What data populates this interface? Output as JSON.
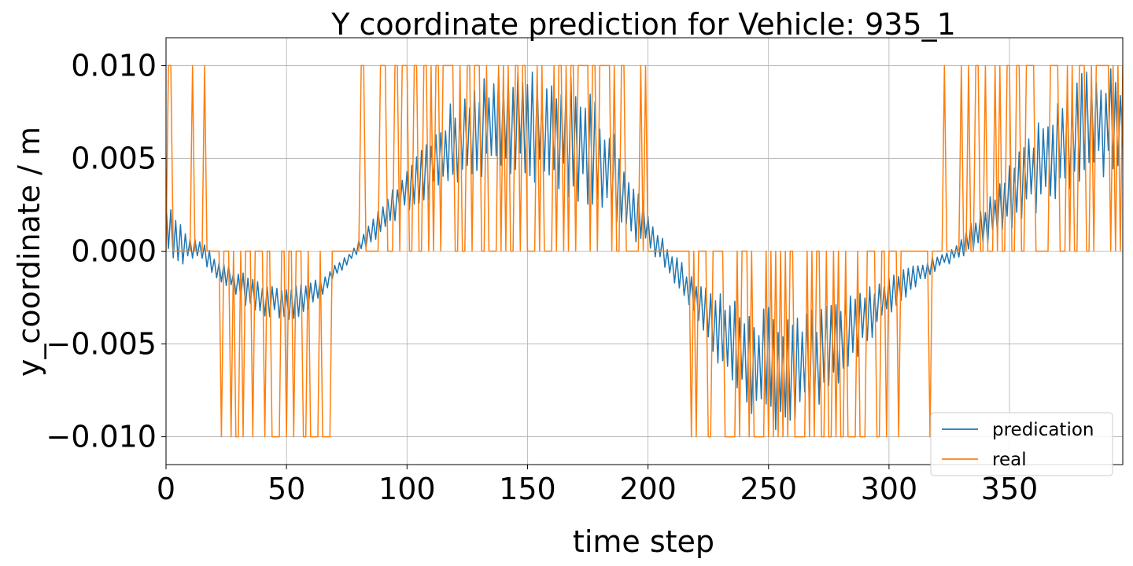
{
  "colors": {
    "prediction": "#1f77b4",
    "real": "#ff7f0e"
  },
  "chart_data": {
    "type": "line",
    "title": "Y coordinate prediction for Vehicle: 935_1",
    "xlabel": "time step",
    "ylabel": "y_coordinate / m",
    "xlim": [
      0,
      397
    ],
    "ylim": [
      -0.0115,
      0.0115
    ],
    "xticks": [
      0,
      50,
      100,
      150,
      200,
      250,
      300,
      350
    ],
    "xtick_labels": [
      "0",
      "50",
      "100",
      "150",
      "200",
      "250",
      "300",
      "350"
    ],
    "yticks": [
      -0.01,
      -0.005,
      0,
      0.005,
      0.01
    ],
    "ytick_labels": [
      "−0.010",
      "−0.005",
      "0.000",
      "0.005",
      "0.010"
    ],
    "grid": true,
    "legend_position": "lower-right",
    "series": [
      {
        "name": "predication",
        "style": "envelope",
        "x": [
          0,
          5,
          10,
          15,
          20,
          25,
          30,
          35,
          40,
          45,
          50,
          55,
          60,
          65,
          70,
          75,
          80,
          85,
          90,
          95,
          100,
          105,
          110,
          115,
          120,
          125,
          130,
          135,
          140,
          145,
          150,
          155,
          160,
          165,
          170,
          175,
          180,
          185,
          190,
          195,
          200,
          205,
          210,
          215,
          220,
          225,
          230,
          235,
          240,
          245,
          250,
          255,
          260,
          265,
          270,
          275,
          280,
          285,
          290,
          295,
          300,
          305,
          310,
          315,
          320,
          325,
          330,
          335,
          340,
          345,
          350,
          355,
          360,
          365,
          370,
          375,
          380,
          385,
          390,
          397
        ],
        "values": [
          0.0015,
          0.0005,
          0.0002,
          0.0,
          -0.0008,
          -0.0012,
          -0.0018,
          -0.0022,
          -0.0025,
          -0.0027,
          -0.0028,
          -0.0027,
          -0.0024,
          -0.0018,
          -0.0011,
          -0.0005,
          0.0003,
          0.001,
          0.0017,
          0.0025,
          0.0033,
          0.004,
          0.0047,
          0.0053,
          0.0058,
          0.0062,
          0.0065,
          0.0067,
          0.0068,
          0.0068,
          0.0067,
          0.0066,
          0.0065,
          0.0063,
          0.006,
          0.0056,
          0.005,
          0.0042,
          0.0032,
          0.0021,
          0.001,
          0.0001,
          -0.0008,
          -0.0017,
          -0.0026,
          -0.0035,
          -0.0043,
          -0.005,
          -0.0056,
          -0.006,
          -0.0063,
          -0.0064,
          -0.0064,
          -0.0062,
          -0.0059,
          -0.0054,
          -0.0048,
          -0.0042,
          -0.0036,
          -0.003,
          -0.0024,
          -0.0019,
          -0.0014,
          -0.001,
          -0.0006,
          -0.0003,
          0.0002,
          0.0008,
          0.0015,
          0.0022,
          0.0029,
          0.0036,
          0.0043,
          0.005,
          0.0056,
          0.0061,
          0.0065,
          0.0068,
          0.007,
          0.0072
        ],
        "amplitude": [
          0.0018,
          0.0014,
          0.0008,
          0.0006,
          0.0006,
          0.0007,
          0.0009,
          0.001,
          0.001,
          0.001,
          0.001,
          0.0009,
          0.0008,
          0.0006,
          0.0004,
          0.0003,
          0.0004,
          0.0006,
          0.0008,
          0.001,
          0.0013,
          0.0016,
          0.0019,
          0.0022,
          0.0025,
          0.0027,
          0.0029,
          0.003,
          0.003,
          0.003,
          0.003,
          0.003,
          0.0032,
          0.0034,
          0.0034,
          0.0033,
          0.003,
          0.0027,
          0.0022,
          0.0016,
          0.001,
          0.0008,
          0.0008,
          0.001,
          0.0013,
          0.0016,
          0.002,
          0.0024,
          0.0028,
          0.0031,
          0.0033,
          0.0033,
          0.0032,
          0.003,
          0.0028,
          0.0026,
          0.0024,
          0.0021,
          0.0018,
          0.0015,
          0.0012,
          0.0009,
          0.0007,
          0.0005,
          0.0004,
          0.0004,
          0.0006,
          0.0009,
          0.0012,
          0.0015,
          0.0018,
          0.0021,
          0.0024,
          0.0026,
          0.0028,
          0.003,
          0.0031,
          0.0031,
          0.003,
          0.0025
        ]
      },
      {
        "name": "real",
        "style": "switching",
        "values_set": [
          -0.01,
          0.0,
          0.01
        ],
        "segments": [
          {
            "from": 0,
            "to": 16,
            "level": 0.01,
            "spike_prob_start": 0.55,
            "spike_prob_end": 0.3
          },
          {
            "from": 17,
            "to": 26,
            "level": -0.01,
            "spike_prob_start": 0.05,
            "spike_prob_end": 0.1
          },
          {
            "from": 27,
            "to": 70,
            "level": -0.01,
            "spike_prob_start": 0.35,
            "spike_prob_end": 0.3
          },
          {
            "from": 71,
            "to": 84,
            "level": 0.01,
            "spike_prob_start": 0.05,
            "spike_prob_end": 0.1
          },
          {
            "from": 85,
            "to": 110,
            "level": 0.01,
            "spike_prob_start": 0.25,
            "spike_prob_end": 0.55
          },
          {
            "from": 111,
            "to": 190,
            "level": 0.01,
            "spike_prob_start": 0.6,
            "spike_prob_end": 0.6
          },
          {
            "from": 191,
            "to": 205,
            "level": 0.01,
            "spike_prob_start": 0.35,
            "spike_prob_end": 0.1
          },
          {
            "from": 206,
            "to": 215,
            "level": -0.01,
            "spike_prob_start": 0.05,
            "spike_prob_end": 0.1
          },
          {
            "from": 216,
            "to": 245,
            "level": -0.01,
            "spike_prob_start": 0.3,
            "spike_prob_end": 0.6
          },
          {
            "from": 246,
            "to": 290,
            "level": -0.01,
            "spike_prob_start": 0.65,
            "spike_prob_end": 0.5
          },
          {
            "from": 291,
            "to": 318,
            "level": -0.01,
            "spike_prob_start": 0.3,
            "spike_prob_end": 0.1
          },
          {
            "from": 319,
            "to": 330,
            "level": 0.01,
            "spike_prob_start": 0.05,
            "spike_prob_end": 0.15
          },
          {
            "from": 331,
            "to": 397,
            "level": 0.01,
            "spike_prob_start": 0.35,
            "spike_prob_end": 0.75
          }
        ]
      }
    ]
  }
}
